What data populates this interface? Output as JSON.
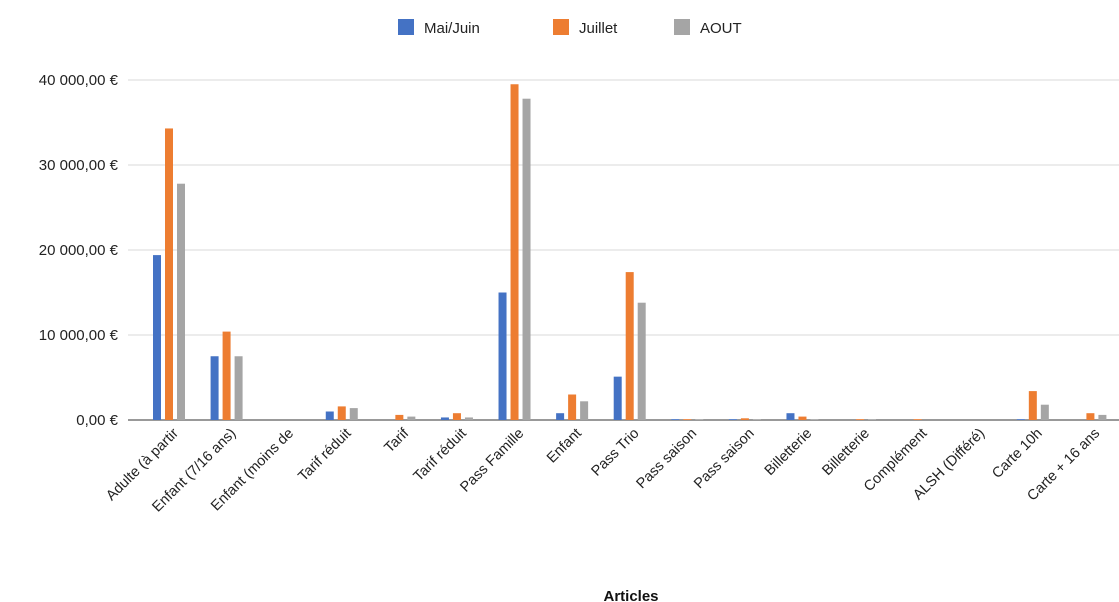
{
  "chart_data": {
    "type": "bar",
    "title": "",
    "xlabel": "Articles",
    "ylabel": "",
    "ylim": [
      0,
      40000
    ],
    "yticks": [
      0,
      10000,
      20000,
      30000,
      40000
    ],
    "ytick_labels": [
      "0,00 €",
      "10 000,00 €",
      "20 000,00 €",
      "30 000,00 €",
      "40 000,00 €"
    ],
    "grid": true,
    "legend_position": "top-center",
    "categories": [
      "Adulte (à partir",
      "Enfant (7/16 ans)",
      "Enfant (moins de",
      "Tarif réduit",
      "Tarif",
      "Tarif réduit",
      "Pass Famille",
      "Enfant",
      "Pass Trio",
      "Pass saison",
      "Pass saison",
      "Billetterie",
      "Billetterie",
      "Complément",
      "ALSH (Différé)",
      "Carte 10h",
      "Carte + 16 ans"
    ],
    "series": [
      {
        "name": "Mai/Juin",
        "color": "#4472c4",
        "values": [
          19400,
          7500,
          0,
          1000,
          0,
          300,
          15000,
          800,
          5100,
          100,
          100,
          800,
          0,
          0,
          0,
          100,
          0
        ]
      },
      {
        "name": "Juillet",
        "color": "#ed7d31",
        "values": [
          34300,
          10400,
          0,
          1600,
          600,
          800,
          39500,
          3000,
          17400,
          100,
          200,
          400,
          100,
          100,
          0,
          3400,
          800
        ]
      },
      {
        "name": "AOUT",
        "color": "#a5a5a5",
        "values": [
          27800,
          7500,
          0,
          1400,
          400,
          300,
          37800,
          2200,
          13800,
          100,
          100,
          100,
          100,
          0,
          0,
          1800,
          600
        ]
      }
    ]
  }
}
